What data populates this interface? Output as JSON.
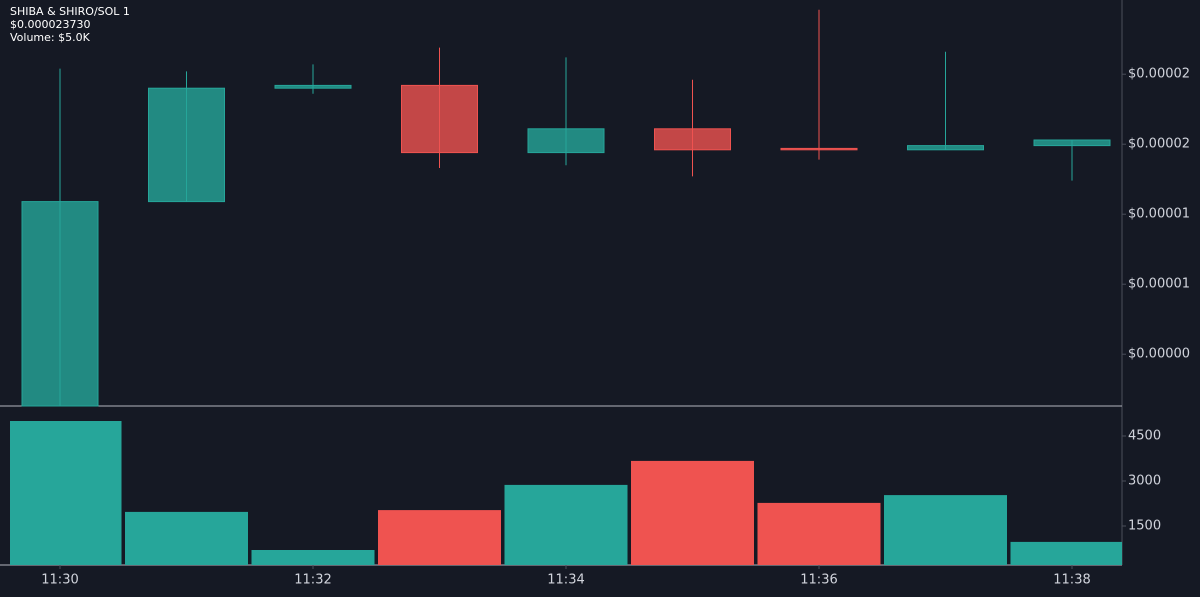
{
  "chart_data": [
    {
      "type": "candlestick",
      "title": "SHIBA & SHIRO/SOL 1",
      "subtitle": "$0.000023730",
      "open": [
        -3.7e-06,
        1.09e-05,
        1.9e-05,
        1.92e-05,
        1.44e-05,
        1.61e-05,
        1.47e-05,
        1.46e-05,
        1.49e-05
      ],
      "high": [
        2.04e-05,
        2.02e-05,
        2.07e-05,
        2.19e-05,
        2.12e-05,
        1.96e-05,
        2.46e-05,
        2.16e-05,
        1.53e-05
      ],
      "low": [
        -3.7e-06,
        1.09e-05,
        1.86e-05,
        1.33e-05,
        1.35e-05,
        1.27e-05,
        1.39e-05,
        1.46e-05,
        1.24e-05
      ],
      "close": [
        1.09e-05,
        1.9e-05,
        1.92e-05,
        1.44e-05,
        1.61e-05,
        1.46e-05,
        1.46e-05,
        1.49e-05,
        1.53e-05
      ],
      "up_color": "#26a69a",
      "down_color": "#ef5350",
      "ylim": [
        -3.7e-06,
        2.53e-05
      ],
      "yticks": [
        {
          "value": 2e-05,
          "label": "$0.00002"
        },
        {
          "value": 1.5e-05,
          "label": "$0.00002"
        },
        {
          "value": 1e-05,
          "label": "$0.00001"
        },
        {
          "value": 5e-06,
          "label": "$0.00001"
        },
        {
          "value": 0,
          "label": "$0.00000"
        }
      ]
    },
    {
      "type": "bar",
      "title": "Volume: $5.0K",
      "categories": [
        "11:30",
        null,
        "11:32",
        null,
        "11:34",
        null,
        "11:36",
        null,
        "11:38"
      ],
      "values": [
        5000,
        1970,
        700,
        2030,
        2870,
        3670,
        2270,
        2530,
        970
      ],
      "ylim": [
        200,
        5500
      ],
      "yticks": [
        4500,
        3000,
        1500
      ]
    }
  ]
}
